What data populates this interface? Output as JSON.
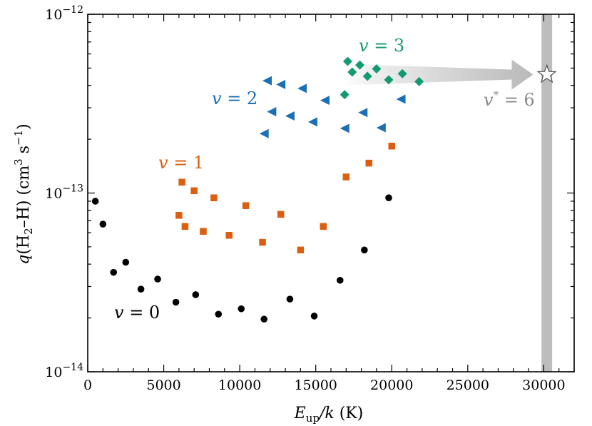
{
  "chart_data": {
    "type": "scatter",
    "title": "",
    "xlabel": {
      "var": "E",
      "sub": "up",
      "rest": "/k (K)",
      "full": "E_up/k (K)"
    },
    "ylabel": {
      "var": "q",
      "open": "(H",
      "sub": "2",
      "rest": "–H) (cm",
      "sup1": "3",
      "mid": " s",
      "sup2": "−1",
      "close": ")",
      "full": "q(H2–H) (cm3 s−1)"
    },
    "xlim": [
      0,
      32000
    ],
    "ylim": [
      1e-14,
      1e-12
    ],
    "yscale": "log",
    "xticks": [
      0,
      5000,
      10000,
      15000,
      20000,
      25000,
      30000
    ],
    "yticks": [
      {
        "value": 1e-14,
        "base": "10",
        "exp": "−14"
      },
      {
        "value": 1e-13,
        "base": "10",
        "exp": "−13"
      },
      {
        "value": 1e-12,
        "base": "10",
        "exp": "−12"
      }
    ],
    "series": [
      {
        "name": "v = 0",
        "var": "v",
        "eq": " = 0",
        "color": "#000000",
        "marker": "circle",
        "points": [
          [
            500,
            9e-14
          ],
          [
            1000,
            6.7e-14
          ],
          [
            1700,
            3.6e-14
          ],
          [
            2500,
            4.1e-14
          ],
          [
            3500,
            2.9e-14
          ],
          [
            4600,
            3.3e-14
          ],
          [
            5800,
            2.45e-14
          ],
          [
            7100,
            2.7e-14
          ],
          [
            8600,
            2.1e-14
          ],
          [
            10100,
            2.25e-14
          ],
          [
            11600,
            1.97e-14
          ],
          [
            13300,
            2.55e-14
          ],
          [
            14900,
            2.05e-14
          ],
          [
            16600,
            3.25e-14
          ],
          [
            18200,
            4.8e-14
          ],
          [
            19800,
            9.4e-14
          ]
        ]
      },
      {
        "name": "v = 1",
        "var": "v",
        "eq": " = 1",
        "color": "#dd5e10",
        "marker": "square",
        "points": [
          [
            6000,
            7.5e-14
          ],
          [
            6200,
            1.15e-13
          ],
          [
            6400,
            6.5e-14
          ],
          [
            7000,
            1.03e-13
          ],
          [
            7600,
            6.1e-14
          ],
          [
            8300,
            9.4e-14
          ],
          [
            9300,
            5.8e-14
          ],
          [
            10400,
            8.5e-14
          ],
          [
            11500,
            5.3e-14
          ],
          [
            12700,
            7.6e-14
          ],
          [
            14000,
            4.8e-14
          ],
          [
            15500,
            6.5e-14
          ],
          [
            17000,
            1.23e-13
          ],
          [
            18500,
            1.47e-13
          ],
          [
            20000,
            1.83e-13
          ]
        ]
      },
      {
        "name": "v = 2",
        "var": "v",
        "eq": " = 2",
        "color": "#1b70b5",
        "marker": "triangle-left",
        "points": [
          [
            11600,
            2.15e-13
          ],
          [
            11800,
            4.25e-13
          ],
          [
            12100,
            2.85e-13
          ],
          [
            12700,
            4.05e-13
          ],
          [
            13300,
            2.7e-13
          ],
          [
            14100,
            3.85e-13
          ],
          [
            14800,
            2.5e-13
          ],
          [
            15600,
            3.3e-13
          ],
          [
            16900,
            2.3e-13
          ],
          [
            18100,
            2.82e-13
          ],
          [
            19300,
            2.32e-13
          ],
          [
            20600,
            3.35e-13
          ]
        ]
      },
      {
        "name": "v = 3",
        "var": "v",
        "eq": " = 3",
        "color": "#149a72",
        "marker": "diamond",
        "points": [
          [
            16900,
            3.55e-13
          ],
          [
            17100,
            5.45e-13
          ],
          [
            17400,
            4.75e-13
          ],
          [
            17900,
            5.2e-13
          ],
          [
            18400,
            4.5e-13
          ],
          [
            19000,
            4.95e-13
          ],
          [
            19800,
            4.3e-13
          ],
          [
            20700,
            4.65e-13
          ],
          [
            21800,
            4.2e-13
          ]
        ]
      }
    ],
    "highlight": {
      "label_var": "v",
      "label_sup": "*",
      "label_eq": " = 6",
      "label": "v* = 6",
      "x": 30200,
      "band": [
        29850,
        30550
      ],
      "star_y": 4.6e-13,
      "arrow": {
        "from_x": 16800,
        "to_x": 29300,
        "y": 4.6e-13
      },
      "color": "#bdbdbd",
      "label_color": "#8a8a8a"
    }
  }
}
